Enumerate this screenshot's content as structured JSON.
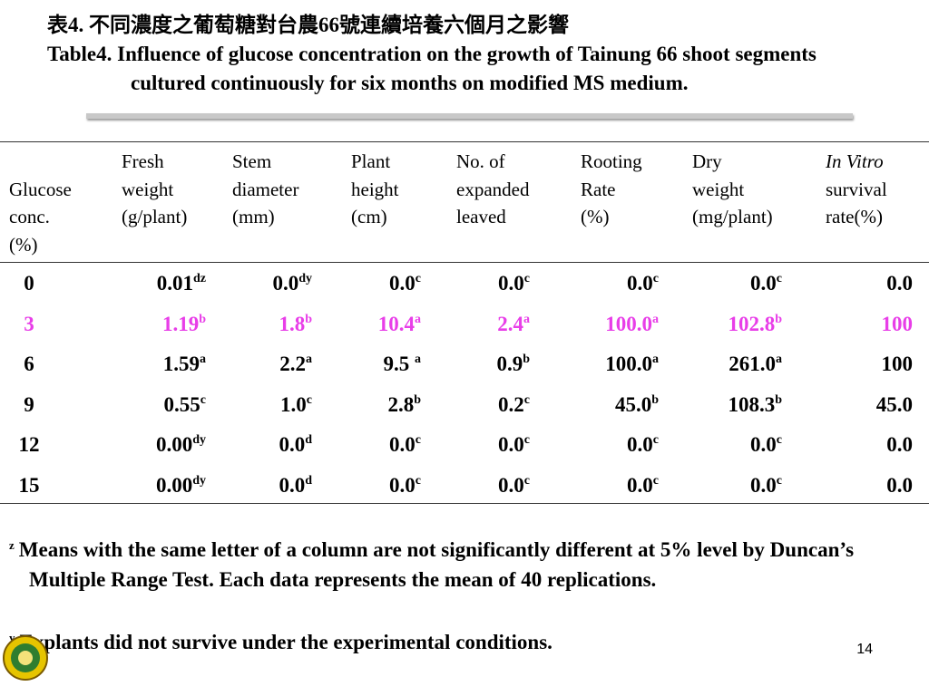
{
  "title_zh": "表4. 不同濃度之葡萄糖對台農66號連續培養六個月之影響",
  "title_en": "Table4. Influence of glucose concentration on the growth of Tainung 66 shoot segments cultured continuously for six months on modified MS medium.",
  "table": {
    "header": [
      [
        "Glucose",
        "conc.",
        "(%)"
      ],
      [
        "Fresh",
        "weight",
        "(g/plant)"
      ],
      [
        "Stem",
        "diameter",
        "(mm)"
      ],
      [
        "Plant",
        "height",
        "(cm)"
      ],
      [
        "No. of",
        "expanded",
        "leaved"
      ],
      [
        "Rooting",
        "Rate",
        "(%)"
      ],
      [
        "Dry",
        "weight",
        "(mg/plant)"
      ],
      [
        "In Vitro",
        "survival",
        "rate(%)"
      ]
    ],
    "rows": [
      {
        "color": "#000000",
        "cells": [
          {
            "text": "0"
          },
          {
            "text": "0.01",
            "sup": "dz"
          },
          {
            "text": "0.0",
            "sup": "dy"
          },
          {
            "text": "0.0",
            "sup": "c"
          },
          {
            "text": "0.0",
            "sup": "c"
          },
          {
            "text": "0.0",
            "sup": "c"
          },
          {
            "text": "0.0",
            "sup": "c"
          },
          {
            "text": "0.0"
          }
        ]
      },
      {
        "color": "#e83ee8",
        "cells": [
          {
            "text": "3"
          },
          {
            "text": "1.19",
            "sup": "b"
          },
          {
            "text": "1.8",
            "sup": "b"
          },
          {
            "text": "10.4",
            "sup": "a"
          },
          {
            "text": "2.4",
            "sup": "a"
          },
          {
            "text": "100.0",
            "sup": "a"
          },
          {
            "text": "102.8",
            "sup": "b"
          },
          {
            "text": "100"
          }
        ]
      },
      {
        "color": "#000000",
        "cells": [
          {
            "text": "6"
          },
          {
            "text": "1.59",
            "sup": "a"
          },
          {
            "text": "2.2",
            "sup": "a"
          },
          {
            "text": "9.5 ",
            "sup": "a"
          },
          {
            "text": "0.9",
            "sup": "b"
          },
          {
            "text": "100.0",
            "sup": "a"
          },
          {
            "text": "261.0",
            "sup": "a"
          },
          {
            "text": "100"
          }
        ]
      },
      {
        "color": "#000000",
        "cells": [
          {
            "text": "9"
          },
          {
            "text": "0.55",
            "sup": "c"
          },
          {
            "text": "1.0",
            "sup": "c"
          },
          {
            "text": "2.8",
            "sup": "b"
          },
          {
            "text": "0.2",
            "sup": "c"
          },
          {
            "text": "45.0",
            "sup": "b"
          },
          {
            "text": "108.3",
            "sup": "b"
          },
          {
            "text": "45.0"
          }
        ]
      },
      {
        "color": "#000000",
        "cells": [
          {
            "text": "12"
          },
          {
            "text": "0.00",
            "sup": "dy"
          },
          {
            "text": "0.0",
            "sup": "d"
          },
          {
            "text": "0.0",
            "sup": "c"
          },
          {
            "text": "0.0",
            "sup": "c"
          },
          {
            "text": "0.0",
            "sup": "c"
          },
          {
            "text": "0.0",
            "sup": "c"
          },
          {
            "text": "0.0"
          }
        ]
      },
      {
        "color": "#000000",
        "cells": [
          {
            "text": "15"
          },
          {
            "text": "0.00",
            "sup": "dy"
          },
          {
            "text": "0.0",
            "sup": "d"
          },
          {
            "text": "0.0",
            "sup": "c"
          },
          {
            "text": "0.0",
            "sup": "c"
          },
          {
            "text": "0.0",
            "sup": "c"
          },
          {
            "text": "0.0",
            "sup": "c"
          },
          {
            "text": "0.0"
          }
        ]
      }
    ]
  },
  "footnotes": [
    {
      "mark": "z",
      "text": "Means with the same letter of a column are not significantly different at 5% level by Duncan’s Multiple Range Test. Each data represents the mean of 40 replications."
    },
    {
      "mark": "y",
      "text": "Explants did not survive under the experimental conditions."
    }
  ],
  "page_number": "14"
}
